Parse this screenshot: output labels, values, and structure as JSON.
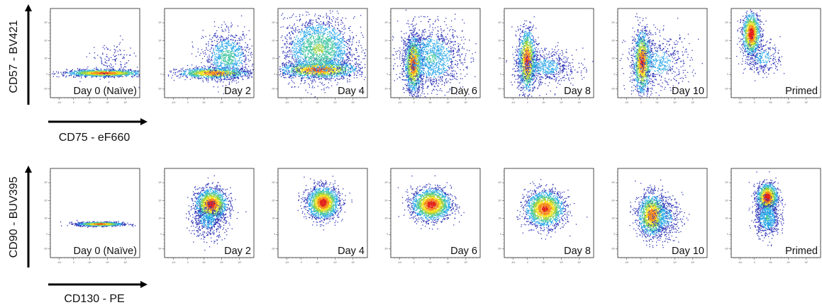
{
  "chart_data": [
    {
      "type": "scatter",
      "xlabel": "CD75 - eF660",
      "ylabel": "CD57 - BV421",
      "x_scale": "biexponential",
      "y_scale": "biexponential",
      "x_ticks": [
        "-10³",
        "0",
        "10³",
        "10⁴",
        "10⁵"
      ],
      "y_ticks": [
        "-10³",
        "0",
        "10³",
        "10⁴",
        "10⁵"
      ],
      "colormap": [
        "#2f35b7",
        "#2aa7e8",
        "#49c7a3",
        "#9bd142",
        "#f3e222",
        "#f48c1e",
        "#e2231a"
      ],
      "panels": [
        {
          "label": "Day 0 (Naïve)",
          "clusters": [
            {
              "x": 0.6,
              "y": 0.28,
              "sx": 0.22,
              "sy": 0.02,
              "n": 1300,
              "dens": 0.9
            },
            {
              "x": 0.68,
              "y": 0.42,
              "sx": 0.12,
              "sy": 0.1,
              "n": 120,
              "dens": 0.1
            }
          ]
        },
        {
          "label": "Day 2",
          "clusters": [
            {
              "x": 0.55,
              "y": 0.28,
              "sx": 0.2,
              "sy": 0.03,
              "n": 1100,
              "dens": 0.85
            },
            {
              "x": 0.7,
              "y": 0.46,
              "sx": 0.13,
              "sy": 0.14,
              "n": 900,
              "dens": 0.35
            }
          ]
        },
        {
          "label": "Day 4",
          "clusters": [
            {
              "x": 0.45,
              "y": 0.32,
              "sx": 0.22,
              "sy": 0.05,
              "n": 1500,
              "dens": 0.9
            },
            {
              "x": 0.45,
              "y": 0.55,
              "sx": 0.2,
              "sy": 0.18,
              "n": 2000,
              "dens": 0.45
            }
          ]
        },
        {
          "label": "Day 6",
          "clusters": [
            {
              "x": 0.25,
              "y": 0.38,
              "sx": 0.05,
              "sy": 0.16,
              "n": 1500,
              "dens": 0.9
            },
            {
              "x": 0.45,
              "y": 0.45,
              "sx": 0.18,
              "sy": 0.18,
              "n": 1300,
              "dens": 0.3
            }
          ]
        },
        {
          "label": "Day 8",
          "clusters": [
            {
              "x": 0.25,
              "y": 0.42,
              "sx": 0.05,
              "sy": 0.18,
              "n": 1300,
              "dens": 0.9
            },
            {
              "x": 0.45,
              "y": 0.35,
              "sx": 0.18,
              "sy": 0.1,
              "n": 700,
              "dens": 0.2
            }
          ]
        },
        {
          "label": "Day 10",
          "clusters": [
            {
              "x": 0.27,
              "y": 0.4,
              "sx": 0.05,
              "sy": 0.18,
              "n": 1300,
              "dens": 0.9
            },
            {
              "x": 0.45,
              "y": 0.4,
              "sx": 0.18,
              "sy": 0.15,
              "n": 600,
              "dens": 0.2
            }
          ]
        },
        {
          "label": "Primed",
          "clusters": [
            {
              "x": 0.22,
              "y": 0.72,
              "sx": 0.05,
              "sy": 0.12,
              "n": 1200,
              "dens": 1.0
            },
            {
              "x": 0.35,
              "y": 0.45,
              "sx": 0.1,
              "sy": 0.1,
              "n": 300,
              "dens": 0.2
            }
          ]
        }
      ]
    },
    {
      "type": "scatter",
      "xlabel": "CD130 - PE",
      "ylabel": "CD90 - BUV395",
      "x_scale": "biexponential",
      "y_scale": "biexponential",
      "x_ticks": [
        "-10³",
        "0",
        "10³",
        "10⁴",
        "10⁵"
      ],
      "y_ticks": [
        "-10³",
        "0",
        "10³",
        "10⁴",
        "10⁵"
      ],
      "colormap": [
        "#2f35b7",
        "#2aa7e8",
        "#49c7a3",
        "#9bd142",
        "#f3e222",
        "#f48c1e",
        "#e2231a"
      ],
      "panels": [
        {
          "label": "Day 0 (Naïve)",
          "clusters": [
            {
              "x": 0.55,
              "y": 0.38,
              "sx": 0.13,
              "sy": 0.012,
              "n": 900,
              "dens": 0.9
            }
          ]
        },
        {
          "label": "Day 2",
          "clusters": [
            {
              "x": 0.52,
              "y": 0.6,
              "sx": 0.09,
              "sy": 0.09,
              "n": 1600,
              "dens": 0.95
            },
            {
              "x": 0.48,
              "y": 0.42,
              "sx": 0.1,
              "sy": 0.1,
              "n": 500,
              "dens": 0.2
            }
          ]
        },
        {
          "label": "Day 4",
          "clusters": [
            {
              "x": 0.5,
              "y": 0.62,
              "sx": 0.09,
              "sy": 0.09,
              "n": 1800,
              "dens": 0.95
            }
          ]
        },
        {
          "label": "Day 6",
          "clusters": [
            {
              "x": 0.45,
              "y": 0.6,
              "sx": 0.11,
              "sy": 0.09,
              "n": 1800,
              "dens": 0.95
            }
          ]
        },
        {
          "label": "Day 8",
          "clusters": [
            {
              "x": 0.45,
              "y": 0.55,
              "sx": 0.11,
              "sy": 0.1,
              "n": 1800,
              "dens": 0.9
            }
          ]
        },
        {
          "label": "Day 10",
          "clusters": [
            {
              "x": 0.38,
              "y": 0.48,
              "sx": 0.08,
              "sy": 0.12,
              "n": 1500,
              "dens": 0.85
            },
            {
              "x": 0.52,
              "y": 0.45,
              "sx": 0.1,
              "sy": 0.12,
              "n": 400,
              "dens": 0.2
            }
          ]
        },
        {
          "label": "Primed",
          "clusters": [
            {
              "x": 0.4,
              "y": 0.68,
              "sx": 0.06,
              "sy": 0.08,
              "n": 1200,
              "dens": 1.0
            },
            {
              "x": 0.4,
              "y": 0.45,
              "sx": 0.07,
              "sy": 0.1,
              "n": 700,
              "dens": 0.3
            }
          ]
        }
      ]
    }
  ]
}
